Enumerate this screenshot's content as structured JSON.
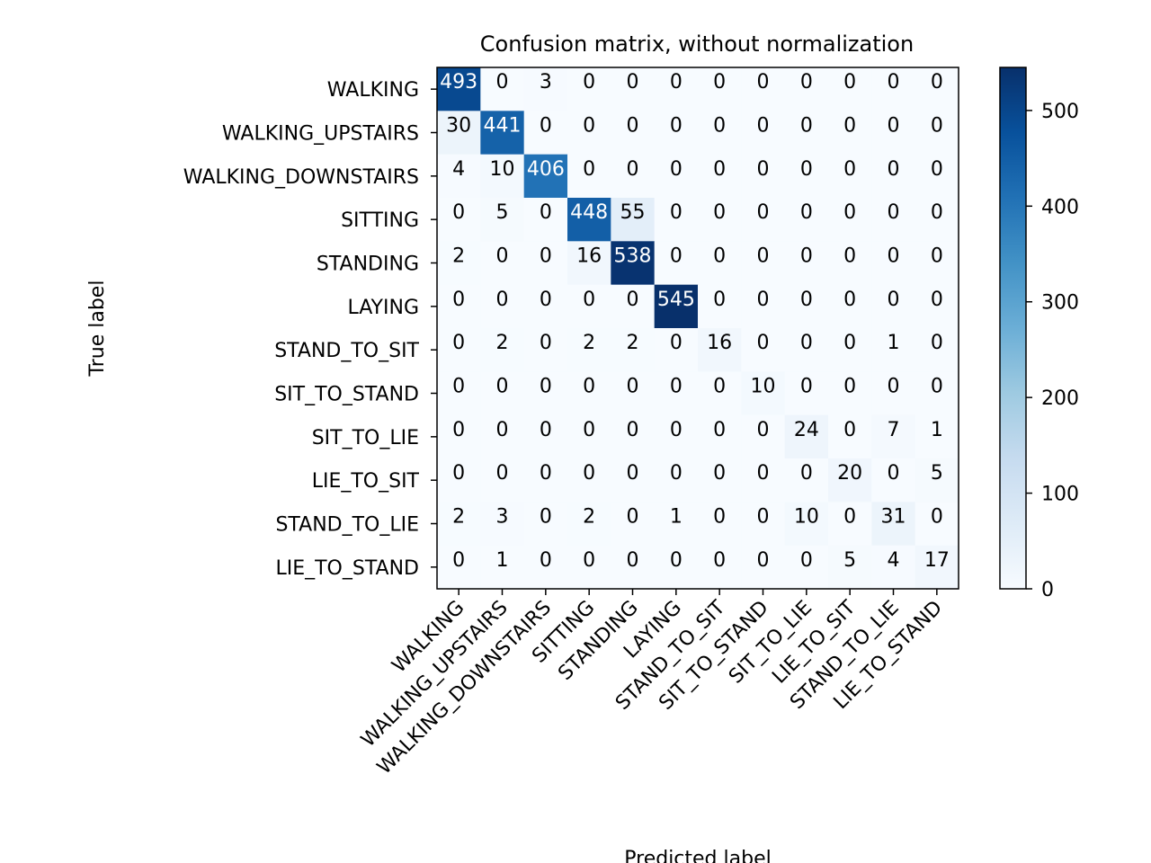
{
  "chart_data": {
    "type": "heatmap",
    "title": "Confusion matrix, without normalization",
    "xlabel": "Predicted label",
    "ylabel": "True label",
    "labels": [
      "WALKING",
      "WALKING_UPSTAIRS",
      "WALKING_DOWNSTAIRS",
      "SITTING",
      "STANDING",
      "LAYING",
      "STAND_TO_SIT",
      "SIT_TO_STAND",
      "SIT_TO_LIE",
      "LIE_TO_SIT",
      "STAND_TO_LIE",
      "LIE_TO_STAND"
    ],
    "matrix": [
      [
        493,
        0,
        3,
        0,
        0,
        0,
        0,
        0,
        0,
        0,
        0,
        0
      ],
      [
        30,
        441,
        0,
        0,
        0,
        0,
        0,
        0,
        0,
        0,
        0,
        0
      ],
      [
        4,
        10,
        406,
        0,
        0,
        0,
        0,
        0,
        0,
        0,
        0,
        0
      ],
      [
        0,
        5,
        0,
        448,
        55,
        0,
        0,
        0,
        0,
        0,
        0,
        0
      ],
      [
        2,
        0,
        0,
        16,
        538,
        0,
        0,
        0,
        0,
        0,
        0,
        0
      ],
      [
        0,
        0,
        0,
        0,
        0,
        545,
        0,
        0,
        0,
        0,
        0,
        0
      ],
      [
        0,
        2,
        0,
        2,
        2,
        0,
        16,
        0,
        0,
        0,
        1,
        0
      ],
      [
        0,
        0,
        0,
        0,
        0,
        0,
        0,
        10,
        0,
        0,
        0,
        0
      ],
      [
        0,
        0,
        0,
        0,
        0,
        0,
        0,
        0,
        24,
        0,
        7,
        1
      ],
      [
        0,
        0,
        0,
        0,
        0,
        0,
        0,
        0,
        0,
        20,
        0,
        5
      ],
      [
        2,
        3,
        0,
        2,
        0,
        1,
        0,
        0,
        10,
        0,
        31,
        0
      ],
      [
        0,
        1,
        0,
        0,
        0,
        0,
        0,
        0,
        0,
        5,
        4,
        17
      ]
    ],
    "colormap": "Blues",
    "vmin": 0,
    "vmax": 545,
    "colorbar_ticks": [
      0,
      100,
      200,
      300,
      400,
      500
    ]
  }
}
